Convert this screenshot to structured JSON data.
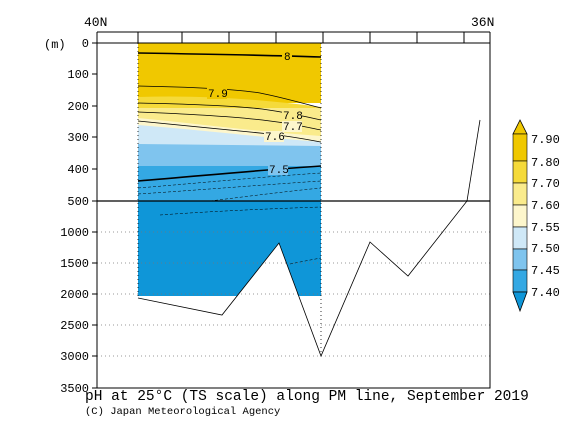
{
  "chart_data": {
    "type": "heatmap",
    "title": "pH at 25°C (TS scale) along PM line, September 2019",
    "credit": "(C) Japan Meteorological Agency",
    "xlabel_left": "40N",
    "xlabel_right": "36N",
    "ylabel": "(m)",
    "upper_panel": {
      "ylim": [
        0,
        500
      ],
      "ticks": [
        "0",
        "100",
        "200",
        "300",
        "400",
        "500"
      ]
    },
    "lower_panel": {
      "ylim": [
        500,
        3500
      ],
      "ticks": [
        "1000",
        "1500",
        "2000",
        "2500",
        "3000",
        "3500"
      ]
    },
    "contour_labels": [
      "8",
      "7.9",
      "7.8",
      "7.7",
      "7.6",
      "7.5"
    ],
    "colorbar": {
      "levels": [
        "7.90",
        "7.80",
        "7.70",
        "7.60",
        "7.55",
        "7.50",
        "7.45",
        "7.40"
      ],
      "colors": [
        "#f0c800",
        "#f5da3a",
        "#faeb8c",
        "#fdf6cc",
        "#cfe8f7",
        "#7fc4ee",
        "#34a8e3",
        "#0f96d8"
      ]
    }
  }
}
